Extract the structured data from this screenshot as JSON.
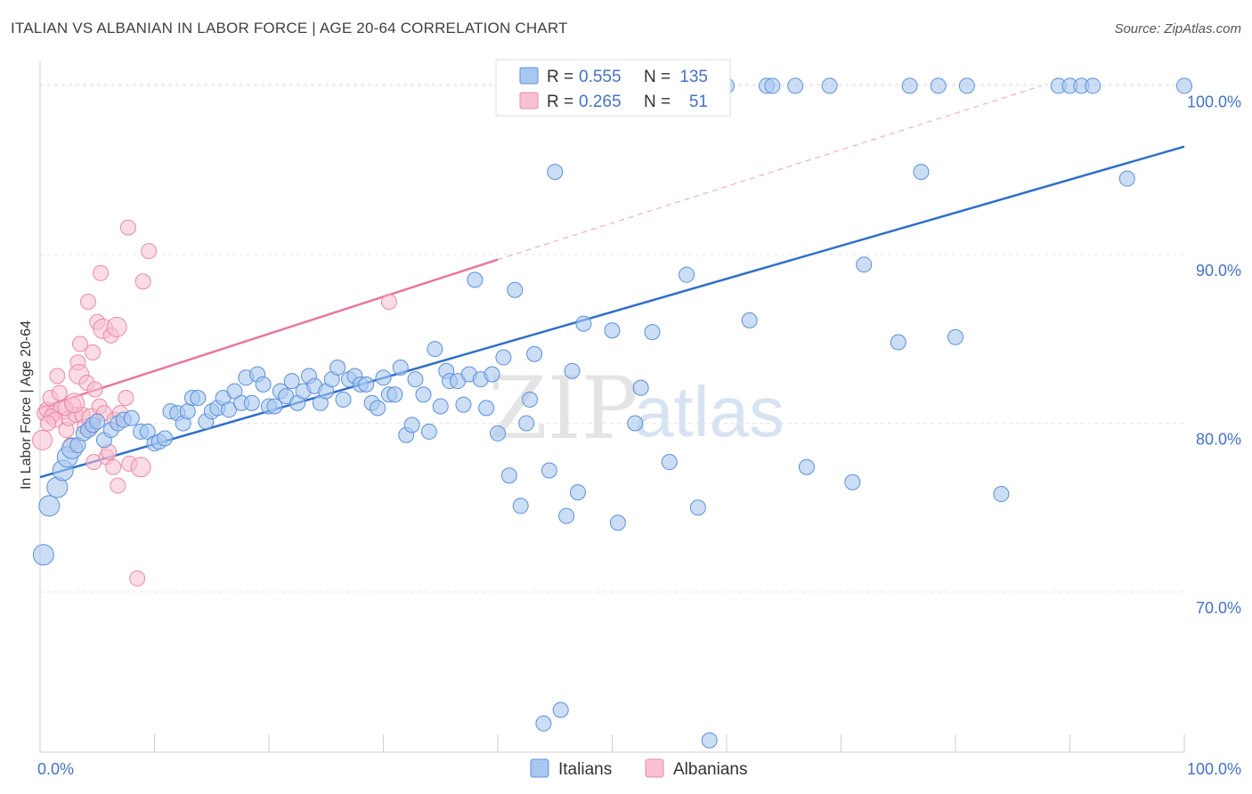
{
  "title": "ITALIAN VS ALBANIAN IN LABOR FORCE | AGE 20-64 CORRELATION CHART",
  "source": "Source: ZipAtlas.com",
  "colors": {
    "italians_fill": "#a9c8f0",
    "italians_stroke": "#5b8fd8",
    "italians_line": "#2e6fc9",
    "albanians_fill": "#f8c0d0",
    "albanians_stroke": "#e88aa8",
    "albanians_line": "#e8779d",
    "axis_text": "#4472c4",
    "grid": "#e6e6e6"
  },
  "chart_data": {
    "type": "scatter",
    "ylabel": "In Labor Force | Age 20-64",
    "xlim": [
      0,
      100
    ],
    "ylim": [
      60.5,
      101.5
    ],
    "y_ticks": [
      {
        "value": 70,
        "label": "70.0%"
      },
      {
        "value": 80,
        "label": "80.0%"
      },
      {
        "value": 90,
        "label": "90.0%"
      },
      {
        "value": 100,
        "label": "100.0%"
      }
    ],
    "x_tick_labels": {
      "min": "0.0%",
      "max": "100.0%"
    },
    "grid": true,
    "legend_top": [
      {
        "r_label": "R =",
        "r_value": "0.555",
        "n_label": "N =",
        "n_value": "135"
      },
      {
        "r_label": "R =",
        "r_value": "0.265",
        "n_label": "N =",
        "n_value": "51"
      }
    ],
    "series": [
      {
        "name": "Italians",
        "trend": {
          "x": [
            0,
            100
          ],
          "y": [
            76.8,
            96.4
          ]
        },
        "points": [
          [
            0.3,
            72.2
          ],
          [
            0.8,
            75.1
          ],
          [
            1.5,
            76.2
          ],
          [
            2.0,
            77.2
          ],
          [
            2.4,
            78.0
          ],
          [
            2.8,
            78.5
          ],
          [
            3.3,
            78.7
          ],
          [
            3.8,
            79.4
          ],
          [
            4.2,
            79.6
          ],
          [
            4.6,
            79.9
          ],
          [
            5.0,
            80.1
          ],
          [
            5.6,
            79.0
          ],
          [
            6.2,
            79.6
          ],
          [
            6.8,
            80.0
          ],
          [
            7.3,
            80.2
          ],
          [
            8.0,
            80.3
          ],
          [
            8.8,
            79.5
          ],
          [
            9.4,
            79.5
          ],
          [
            10.0,
            78.8
          ],
          [
            10.4,
            78.9
          ],
          [
            10.9,
            79.1
          ],
          [
            11.4,
            80.7
          ],
          [
            12.0,
            80.6
          ],
          [
            12.5,
            80.0
          ],
          [
            12.9,
            80.7
          ],
          [
            13.3,
            81.5
          ],
          [
            13.8,
            81.5
          ],
          [
            14.5,
            80.1
          ],
          [
            15.0,
            80.7
          ],
          [
            15.5,
            80.9
          ],
          [
            16.0,
            81.5
          ],
          [
            16.5,
            80.8
          ],
          [
            17.0,
            81.9
          ],
          [
            17.6,
            81.2
          ],
          [
            18.0,
            82.7
          ],
          [
            18.5,
            81.2
          ],
          [
            19.0,
            82.9
          ],
          [
            19.5,
            82.3
          ],
          [
            20.0,
            81.0
          ],
          [
            20.5,
            81.0
          ],
          [
            21.0,
            81.9
          ],
          [
            21.5,
            81.6
          ],
          [
            22.0,
            82.5
          ],
          [
            22.5,
            81.2
          ],
          [
            23.0,
            81.9
          ],
          [
            23.5,
            82.8
          ],
          [
            24.0,
            82.2
          ],
          [
            24.5,
            81.2
          ],
          [
            25.0,
            81.9
          ],
          [
            25.5,
            82.6
          ],
          [
            26.0,
            83.3
          ],
          [
            26.5,
            81.4
          ],
          [
            27.0,
            82.6
          ],
          [
            27.5,
            82.8
          ],
          [
            28.0,
            82.3
          ],
          [
            28.5,
            82.3
          ],
          [
            29.0,
            81.2
          ],
          [
            29.5,
            80.9
          ],
          [
            30.0,
            82.7
          ],
          [
            30.5,
            81.7
          ],
          [
            31.0,
            81.7
          ],
          [
            31.5,
            83.3
          ],
          [
            32.0,
            79.3
          ],
          [
            32.5,
            79.9
          ],
          [
            32.8,
            82.6
          ],
          [
            33.5,
            81.7
          ],
          [
            34.0,
            79.5
          ],
          [
            34.5,
            84.4
          ],
          [
            35.0,
            81.0
          ],
          [
            35.5,
            83.1
          ],
          [
            35.8,
            82.5
          ],
          [
            36.5,
            82.5
          ],
          [
            37.0,
            81.1
          ],
          [
            37.5,
            82.9
          ],
          [
            38.0,
            88.5
          ],
          [
            38.5,
            82.6
          ],
          [
            39.0,
            80.9
          ],
          [
            39.5,
            82.9
          ],
          [
            40.0,
            79.4
          ],
          [
            40.5,
            83.9
          ],
          [
            41.0,
            76.9
          ],
          [
            41.5,
            87.9
          ],
          [
            42.0,
            75.1
          ],
          [
            42.5,
            80.0
          ],
          [
            42.8,
            81.4
          ],
          [
            43.2,
            84.1
          ],
          [
            44.0,
            62.2
          ],
          [
            44.5,
            77.2
          ],
          [
            45.0,
            94.9
          ],
          [
            45.5,
            63.0
          ],
          [
            46.0,
            74.5
          ],
          [
            46.5,
            83.1
          ],
          [
            47.0,
            75.9
          ],
          [
            47.5,
            85.9
          ],
          [
            48.5,
            100.0
          ],
          [
            49.0,
            100.0
          ],
          [
            50.0,
            85.5
          ],
          [
            50.5,
            74.1
          ],
          [
            51.0,
            100.0
          ],
          [
            51.5,
            100.0
          ],
          [
            52.0,
            80.0
          ],
          [
            52.5,
            82.1
          ],
          [
            53.0,
            100.0
          ],
          [
            53.5,
            85.4
          ],
          [
            54.0,
            100.0
          ],
          [
            55.0,
            77.7
          ],
          [
            55.5,
            100.0
          ],
          [
            56.0,
            100.0
          ],
          [
            56.5,
            88.8
          ],
          [
            57.0,
            100.0
          ],
          [
            57.5,
            75.0
          ],
          [
            58.0,
            100.0
          ],
          [
            58.5,
            61.2
          ],
          [
            60.0,
            100.0
          ],
          [
            62.0,
            86.1
          ],
          [
            63.5,
            100.0
          ],
          [
            64.0,
            100.0
          ],
          [
            66.0,
            100.0
          ],
          [
            67.0,
            77.4
          ],
          [
            69.0,
            100.0
          ],
          [
            71.0,
            76.5
          ],
          [
            72.0,
            89.4
          ],
          [
            75.0,
            84.8
          ],
          [
            76.0,
            100.0
          ],
          [
            77.0,
            94.9
          ],
          [
            78.5,
            100.0
          ],
          [
            80.0,
            85.1
          ],
          [
            81.0,
            100.0
          ],
          [
            84.0,
            75.8
          ],
          [
            89.0,
            100.0
          ],
          [
            90.0,
            100.0
          ],
          [
            91.0,
            100.0
          ],
          [
            92.0,
            100.0
          ],
          [
            95.0,
            94.5
          ],
          [
            100.0,
            100.0
          ]
        ]
      },
      {
        "name": "Albanians",
        "trend": {
          "x": [
            0,
            40
          ],
          "y": [
            80.9,
            89.7
          ]
        },
        "trend_dashed": {
          "x": [
            40,
            87.5
          ],
          "y": [
            89.7,
            100.0
          ]
        },
        "points": [
          [
            0.2,
            79.0
          ],
          [
            0.4,
            80.6
          ],
          [
            0.6,
            80.8
          ],
          [
            0.9,
            81.5
          ],
          [
            1.2,
            80.6
          ],
          [
            1.5,
            82.8
          ],
          [
            1.7,
            81.8
          ],
          [
            2.0,
            80.8
          ],
          [
            2.3,
            79.6
          ],
          [
            2.5,
            80.3
          ],
          [
            2.7,
            78.7
          ],
          [
            2.9,
            81.1
          ],
          [
            3.1,
            80.5
          ],
          [
            3.3,
            83.6
          ],
          [
            3.4,
            82.9
          ],
          [
            3.5,
            84.7
          ],
          [
            3.7,
            80.5
          ],
          [
            3.9,
            79.8
          ],
          [
            4.1,
            82.4
          ],
          [
            4.2,
            87.2
          ],
          [
            4.4,
            79.7
          ],
          [
            4.5,
            80.3
          ],
          [
            4.6,
            84.2
          ],
          [
            4.7,
            77.7
          ],
          [
            4.8,
            82.0
          ],
          [
            5.0,
            86.0
          ],
          [
            5.2,
            81.0
          ],
          [
            5.3,
            88.9
          ],
          [
            5.5,
            85.6
          ],
          [
            5.6,
            80.6
          ],
          [
            5.8,
            78.0
          ],
          [
            6.0,
            78.3
          ],
          [
            6.2,
            85.2
          ],
          [
            6.4,
            77.4
          ],
          [
            6.5,
            80.2
          ],
          [
            6.7,
            85.7
          ],
          [
            6.8,
            76.3
          ],
          [
            7.0,
            80.6
          ],
          [
            7.5,
            81.5
          ],
          [
            7.7,
            91.6
          ],
          [
            7.8,
            77.6
          ],
          [
            8.5,
            70.8
          ],
          [
            8.8,
            77.4
          ],
          [
            9.0,
            88.4
          ],
          [
            9.5,
            90.2
          ],
          [
            30.5,
            87.2
          ],
          [
            1.0,
            80.4
          ],
          [
            1.3,
            80.2
          ],
          [
            2.2,
            80.9
          ],
          [
            3.0,
            81.2
          ],
          [
            0.7,
            80.0
          ]
        ]
      }
    ]
  },
  "bottom_legend": [
    {
      "label": "Italians"
    },
    {
      "label": "Albanians"
    }
  ],
  "watermark": {
    "zip": "ZIP",
    "atlas": "atlas"
  }
}
